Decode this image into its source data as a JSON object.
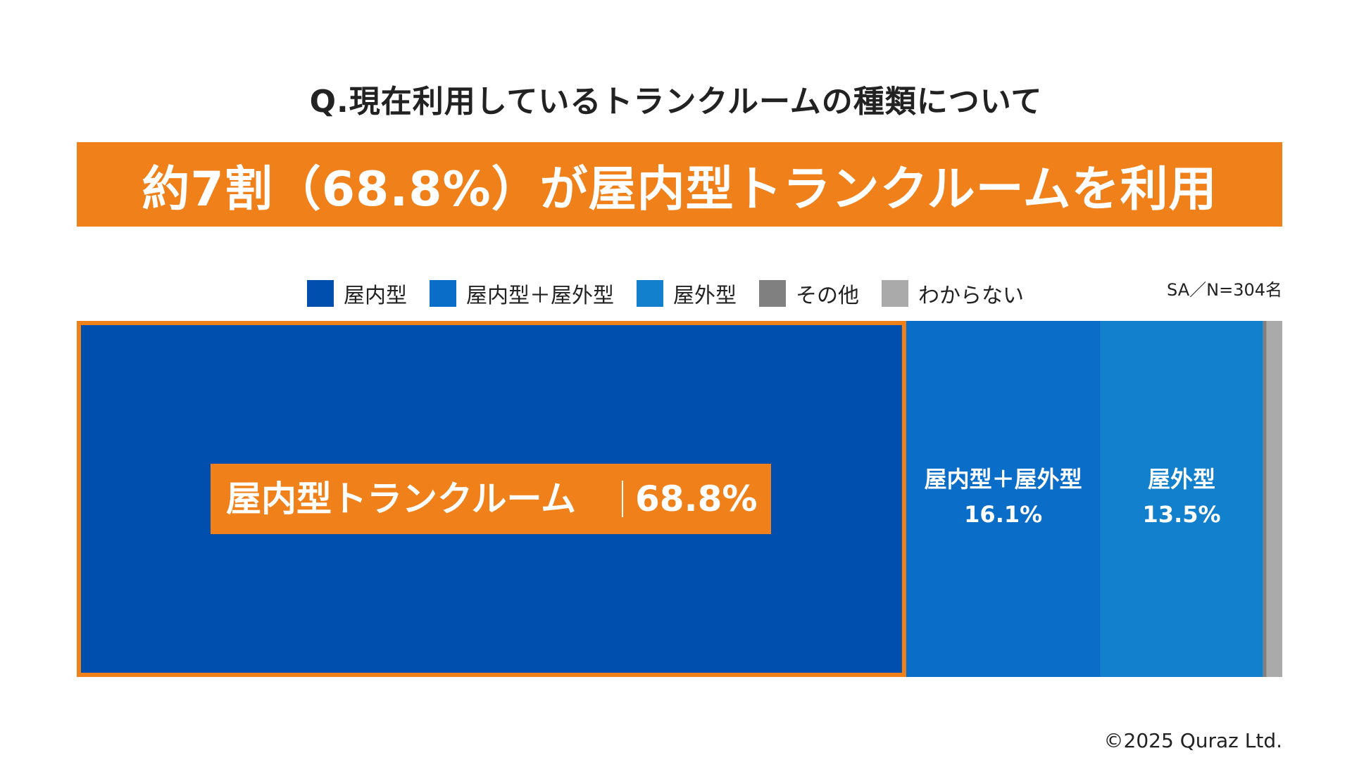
{
  "question": "Q.現在利用しているトランクルームの種類について",
  "headline": "約7割（68.8%）が屋内型トランクルームを利用",
  "sample_note": "SA／N=304名",
  "copyright": "©2025 Quraz Ltd.",
  "legend": [
    {
      "label": "屋内型",
      "color": "#004fae"
    },
    {
      "label": "屋内型＋屋外型",
      "color": "#0a6dc8"
    },
    {
      "label": "屋外型",
      "color": "#1280cd"
    },
    {
      "label": "その他",
      "color": "#808080"
    },
    {
      "label": "わからない",
      "color": "#aaaaaa"
    }
  ],
  "chart_data": {
    "type": "bar",
    "orientation": "horizontal-stacked-100",
    "title": "Q.現在利用しているトランクルームの種類について",
    "categories": [
      "屋内型",
      "屋内型＋屋外型",
      "屋外型",
      "その他",
      "わからない"
    ],
    "values": [
      68.8,
      16.1,
      13.5,
      0.3,
      1.3
    ],
    "unit": "%",
    "highlight": {
      "category": "屋内型",
      "label_name": "屋内型トランクルーム",
      "label_value": "68.8%",
      "color": "#f08019"
    },
    "segment_labels": [
      {
        "name": "屋内型＋屋外型",
        "value": "16.1%"
      },
      {
        "name": "屋外型",
        "value": "13.5%"
      }
    ],
    "colors": [
      "#004fae",
      "#0a6dc8",
      "#1280cd",
      "#808080",
      "#aaaaaa"
    ],
    "legend_position": "top",
    "grid": false
  }
}
